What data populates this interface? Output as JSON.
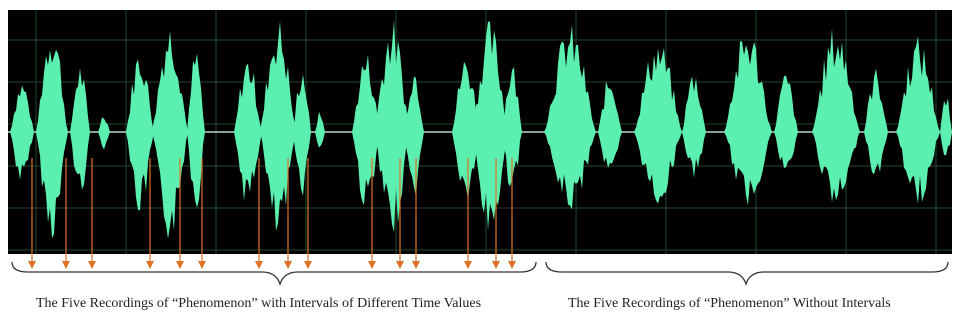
{
  "colors": {
    "background": "#000000",
    "grid": "#1f4a2f",
    "baseline": "#b8d8c8",
    "waveform": "#5cf0b0",
    "arrow": "#e0722a",
    "brace": "#333333"
  },
  "waveform": {
    "groups_with_intervals": 5,
    "groups_without_intervals": 5,
    "arrow_count": 16
  },
  "captions": {
    "left": "The Five Recordings of “Phenomenon” with Intervals of Different Time Values",
    "right": "The Five Recordings of “Phenomenon” Without Intervals"
  }
}
